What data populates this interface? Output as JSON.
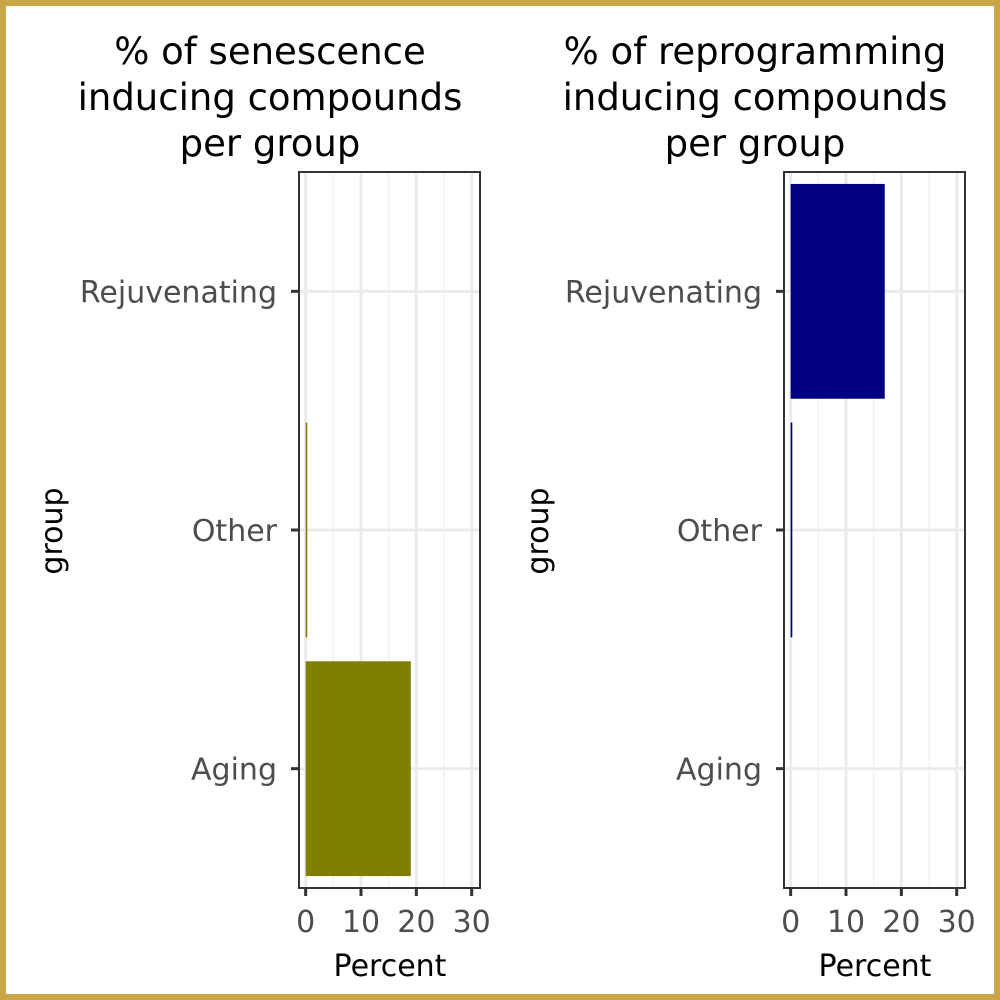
{
  "chart_data": [
    {
      "type": "bar",
      "orientation": "horizontal",
      "title_lines": [
        "% of senescence",
        "inducing compounds",
        "per group"
      ],
      "categories": [
        "Aging",
        "Other",
        "Rejuvenating"
      ],
      "values": [
        19,
        0.3,
        0
      ],
      "bar_color": "#808000",
      "xlabel": "Percent",
      "ylabel": "group",
      "xlim": [
        -1.2,
        31.5
      ],
      "xticks": [
        "0",
        "10",
        "20",
        "30"
      ],
      "grid": true
    },
    {
      "type": "bar",
      "orientation": "horizontal",
      "title_lines": [
        "% of reprogramming",
        "inducing compounds",
        "per group"
      ],
      "categories": [
        "Aging",
        "Other",
        "Rejuvenating"
      ],
      "values": [
        0,
        0.3,
        17
      ],
      "bar_color": "#000080",
      "xlabel": "Percent",
      "ylabel": "group",
      "xlim": [
        -1.2,
        31.5
      ],
      "xticks": [
        "0",
        "10",
        "20",
        "30"
      ],
      "grid": true
    }
  ],
  "frame_color": "#c9a646"
}
